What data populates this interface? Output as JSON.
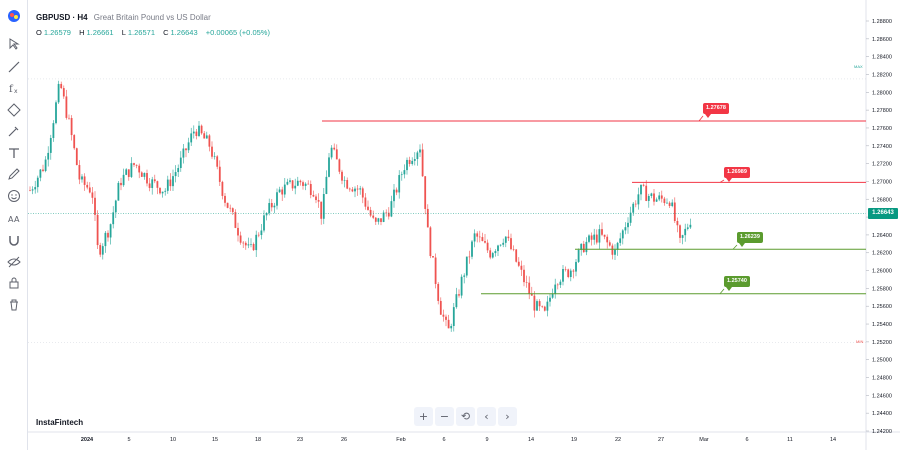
{
  "legend": {
    "symbol": "GBPUSD · H4",
    "description": "Great Britain Pound vs US Dollar",
    "open_key": "O",
    "open": "1.26579",
    "high_key": "H",
    "high": "1.26661",
    "low_key": "L",
    "low": "1.26571",
    "close_key": "C",
    "close": "1.26643",
    "change": "+0.00065 (+0.05%)"
  },
  "brand": "InstaFintech",
  "current_price": "1.26643",
  "price_axis": {
    "labels": [
      "1.28800",
      "1.28600",
      "1.28400",
      "1.28200",
      "1.28000",
      "1.27800",
      "1.27600",
      "1.27400",
      "1.27200",
      "1.27000",
      "1.26800",
      "1.26600",
      "1.26400",
      "1.26200",
      "1.26000",
      "1.25800",
      "1.25600",
      "1.25400",
      "1.25200",
      "1.25000",
      "1.24800",
      "1.24600",
      "1.24400",
      "1.24200"
    ]
  },
  "time_axis": {
    "labels": [
      "2024",
      "5",
      "10",
      "15",
      "18",
      "23",
      "26",
      "Feb",
      "6",
      "9",
      "14",
      "19",
      "22",
      "27",
      "Mar",
      "6",
      "11",
      "14"
    ]
  },
  "levels": [
    {
      "label": "1.27678",
      "color": "red"
    },
    {
      "label": "1.26989",
      "color": "red"
    },
    {
      "label": "1.26239",
      "color": "green"
    },
    {
      "label": "1.25740",
      "color": "green"
    }
  ],
  "markers": {
    "max_label": "MAX",
    "min_label": "MIN"
  },
  "colors": {
    "up": "#26a69a",
    "down": "#ef5350",
    "resistance": "#f23645",
    "support": "#5b9b2e",
    "current": "#089981"
  },
  "toolbar": {
    "icons": [
      "logo-icon",
      "cursor-icon",
      "trendline-icon",
      "fibonacci-icon",
      "pattern-icon",
      "brush-icon",
      "text-icon",
      "pencil-icon",
      "emoji-icon",
      "measure-icon",
      "magnet-icon",
      "eye-off-icon",
      "lock-icon",
      "trash-icon"
    ]
  },
  "nav": {
    "zoom_in": "+",
    "zoom_out": "−",
    "reset": "⟲",
    "back": "‹",
    "forward": "›"
  }
}
